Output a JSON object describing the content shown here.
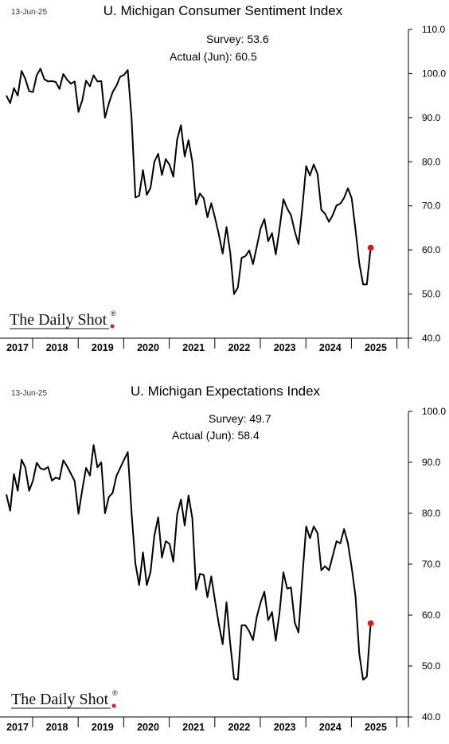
{
  "chart_data": [
    {
      "type": "line",
      "date_label": "13-Jun-25",
      "title": "U. Michigan Consumer Sentiment Index",
      "annotation": {
        "survey": "Survey:  53.6",
        "actual": "Actual (Jun):  60.5"
      },
      "ylim": [
        40,
        110
      ],
      "yticks": [
        "110.0",
        "100.0",
        "90.0",
        "80.0",
        "70.0",
        "60.0",
        "50.0",
        "40.0"
      ],
      "x_labels": [
        "2017",
        "2018",
        "2019",
        "2020",
        "2021",
        "2022",
        "2023",
        "2024",
        "2025"
      ],
      "logo": "The Daily Shot",
      "logo_reg": "®",
      "line_color": "#000000",
      "marker_color": "#e8141c",
      "last_point": {
        "date": "2025-06",
        "value": 60.5
      },
      "series": [
        {
          "values": [
            95.0,
            93.3,
            96.7,
            95.0,
            100.6,
            98.8,
            96.0,
            95.8,
            99.6,
            101.1,
            98.7,
            98.2,
            98.3,
            98.1,
            96.5,
            99.9,
            98.6,
            97.7,
            98.2,
            91.3,
            93.9,
            98.4,
            97.1,
            99.6,
            98.2,
            98.3,
            90.0,
            93.2,
            95.8,
            97.2,
            99.3,
            99.7,
            100.8,
            89.8,
            71.9,
            72.3,
            78.1,
            72.5,
            74.1,
            80.0,
            81.8,
            77.0,
            80.6,
            79.3,
            76.6,
            85.0,
            88.3,
            81.2,
            84.9,
            80.0,
            70.3,
            72.8,
            71.7,
            67.4,
            70.6,
            67.2,
            63.5,
            59.2,
            65.2,
            59.4,
            50.0,
            51.5,
            58.2,
            58.6,
            59.9,
            56.8,
            60.8,
            64.9,
            67.0,
            62.0,
            63.8,
            59.0,
            64.9,
            71.5,
            69.4,
            67.9,
            64.2,
            61.3,
            69.7,
            79.0,
            76.9,
            79.4,
            77.2,
            69.1,
            68.2,
            66.4,
            67.9,
            70.1,
            70.5,
            71.8,
            74.0,
            71.7,
            64.7,
            57.0,
            52.2,
            52.2,
            60.5
          ]
        }
      ]
    },
    {
      "type": "line",
      "date_label": "13-Jun-25",
      "title": "U. Michigan Expectations Index",
      "annotation": {
        "survey": "Survey:  49.7",
        "actual": "Actual (Jun):  58.4"
      },
      "ylim": [
        40,
        100
      ],
      "yticks": [
        "100.0",
        "90.0",
        "80.0",
        "70.0",
        "60.0",
        "50.0",
        "40.0"
      ],
      "x_labels": [
        "2017",
        "2018",
        "2019",
        "2020",
        "2021",
        "2022",
        "2023",
        "2024",
        "2025"
      ],
      "logo": "The Daily Shot",
      "logo_reg": "®",
      "line_color": "#000000",
      "marker_color": "#e8141c",
      "last_point": {
        "date": "2025-06",
        "value": 58.4
      },
      "series": [
        {
          "values": [
            83.7,
            80.5,
            87.7,
            84.4,
            90.5,
            89.0,
            84.4,
            86.4,
            89.9,
            88.8,
            88.6,
            89.1,
            86.4,
            87.0,
            86.7,
            90.4,
            89.2,
            87.8,
            86.3,
            79.9,
            84.6,
            88.9,
            87.4,
            93.4,
            89.0,
            90.0,
            80.0,
            83.2,
            84.0,
            87.3,
            88.9,
            90.5,
            92.0,
            80.0,
            70.1,
            65.9,
            72.3,
            65.9,
            68.5,
            75.6,
            79.2,
            71.3,
            74.5,
            74.0,
            70.5,
            79.7,
            82.7,
            77.6,
            83.5,
            79.0,
            65.0,
            68.1,
            67.9,
            63.5,
            67.6,
            62.7,
            58.2,
            54.3,
            62.5,
            54.4,
            47.5,
            47.3,
            58.0,
            58.0,
            56.8,
            55.1,
            59.7,
            62.5,
            64.6,
            59.0,
            60.6,
            55.0,
            60.6,
            68.4,
            65.2,
            65.4,
            58.5,
            56.6,
            67.4,
            77.4,
            75.1,
            77.4,
            76.1,
            68.8,
            69.6,
            68.8,
            71.6,
            74.5,
            74.1,
            76.9,
            74.1,
            69.3,
            63.8,
            52.4,
            47.3,
            47.9,
            58.4
          ]
        }
      ]
    }
  ]
}
